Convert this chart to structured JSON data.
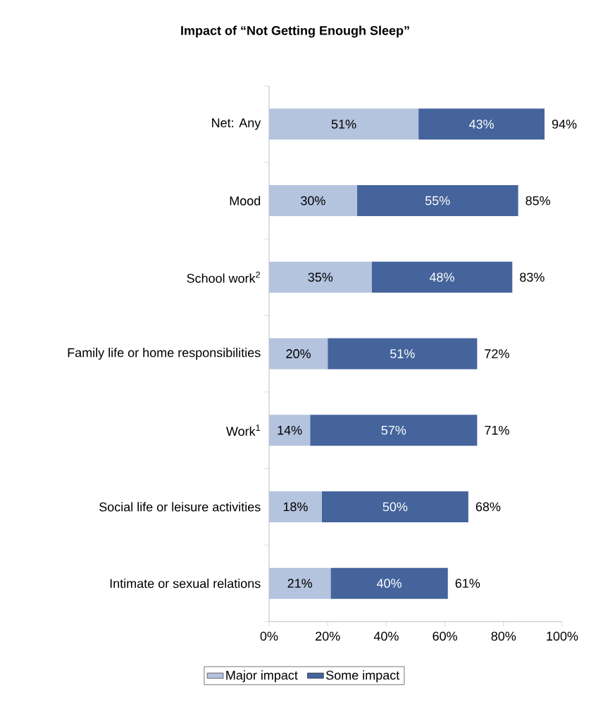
{
  "chart_data": {
    "type": "bar",
    "orientation": "horizontal",
    "stacked": true,
    "title": "Impact of “Not Getting Enough Sleep”",
    "categories": [
      "Net: Any",
      "Mood",
      "School work$^{2}$",
      "Family life or home responsibilities",
      "Work$^{1}$",
      "Social life or leisure activities",
      "Intimate or sexual relations"
    ],
    "series": [
      {
        "name": "Major impact",
        "color": "#b4c3de",
        "values": [
          51,
          30,
          35,
          20,
          14,
          18,
          21
        ],
        "value_labels": [
          "51%",
          "30%",
          "35%",
          "20%",
          "14%",
          "18%",
          "21%"
        ]
      },
      {
        "name": "Some impact",
        "color": "#44649b",
        "values": [
          43,
          55,
          48,
          51,
          57,
          50,
          40
        ],
        "value_labels": [
          "43%",
          "55%",
          "48%",
          "51%",
          "57%",
          "50%",
          "40%"
        ]
      }
    ],
    "totals": [
      "94%",
      "85%",
      "83%",
      "72%",
      "71%",
      "68%",
      "61%"
    ],
    "xlim": [
      0,
      100
    ],
    "xticks": [
      {
        "value": 0,
        "label": "0%"
      },
      {
        "value": 20,
        "label": "20%"
      },
      {
        "value": 40,
        "label": "40%"
      },
      {
        "value": 60,
        "label": "60%"
      },
      {
        "value": 80,
        "label": "80%"
      },
      {
        "value": 100,
        "label": "100%"
      }
    ],
    "legend": "bottom"
  }
}
